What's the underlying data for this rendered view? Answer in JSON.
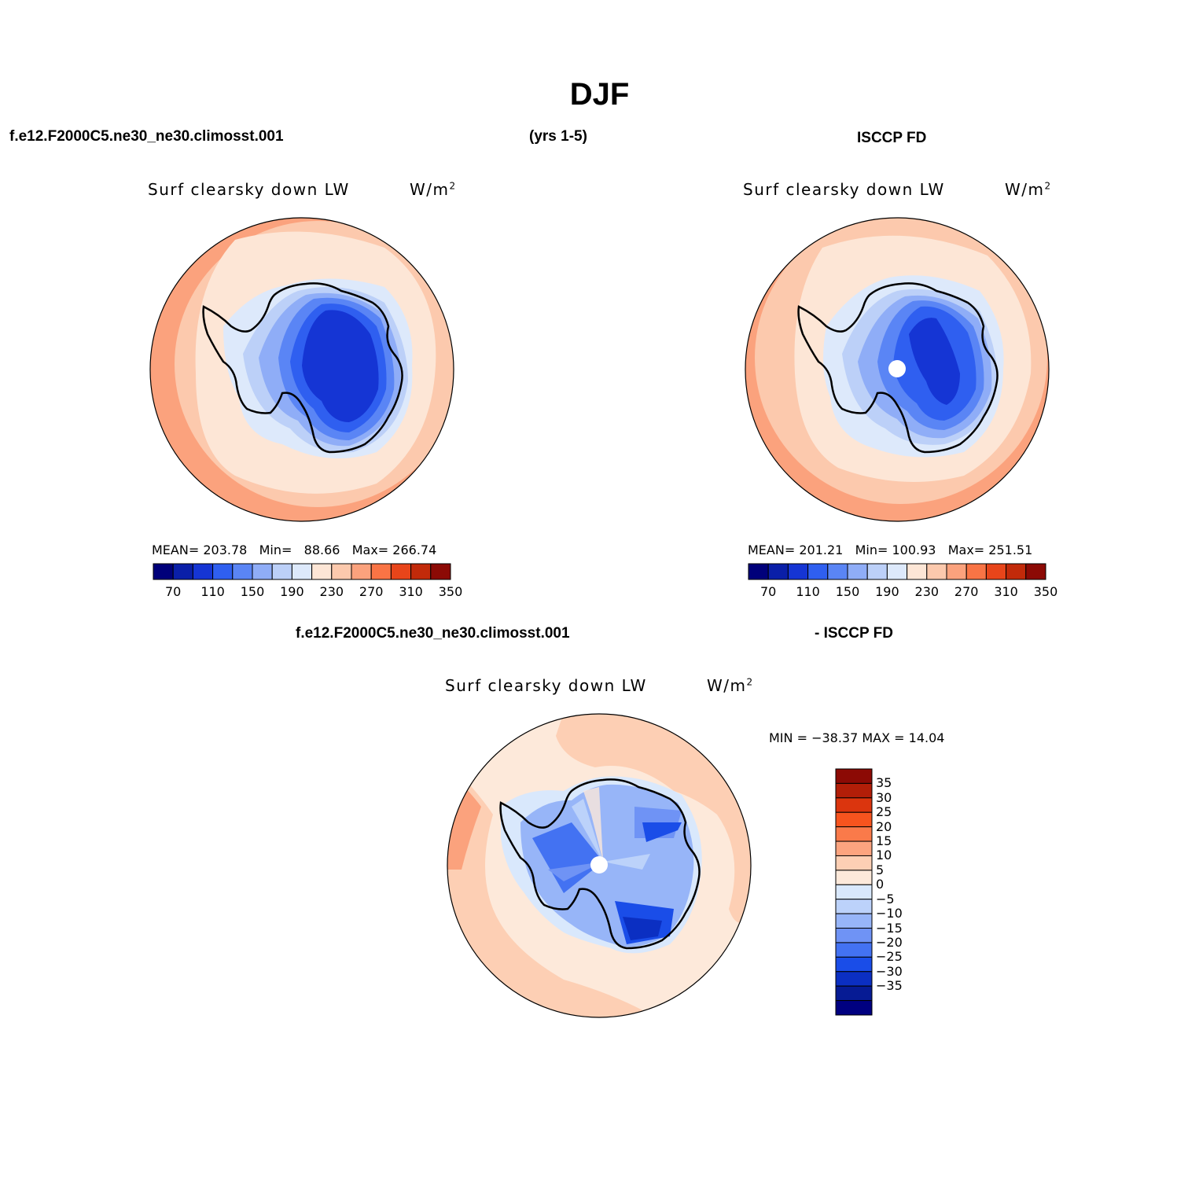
{
  "header": {
    "title": "DJF",
    "case_name": "f.e12.F2000C5.ne30_ne30.climosst.001",
    "years": "(yrs 1-5)",
    "obs_name": "ISCCP FD",
    "diff_case_name": "f.e12.F2000C5.ne30_ne30.climosst.001",
    "diff_obs_name": "- ISCCP FD"
  },
  "panels": [
    {
      "id": "model",
      "variable": "Surf clearsky down LW",
      "units": "W/m",
      "units_sup": "2",
      "stats": {
        "mean_label": "MEAN=",
        "mean": "203.78",
        "min_label": "Min=",
        "min": "88.66",
        "max_label": "Max=",
        "max": "266.74"
      }
    },
    {
      "id": "obs",
      "variable": "Surf clearsky down LW",
      "units": "W/m",
      "units_sup": "2",
      "stats": {
        "mean_label": "MEAN=",
        "mean": "201.21",
        "min_label": "Min=",
        "min": "100.93",
        "max_label": "Max=",
        "max": "251.51"
      }
    },
    {
      "id": "diff",
      "variable": "Surf clearsky down LW",
      "units": "W/m",
      "units_sup": "2",
      "stats_line": "MIN = −38.37 MAX =   14.04"
    }
  ],
  "colorbar_horizontal": {
    "colors": [
      "#00007a",
      "#0a1fa8",
      "#1535d4",
      "#2f5ff0",
      "#5a85f5",
      "#8fadf7",
      "#bcd0f8",
      "#dde9fb",
      "#fde6d6",
      "#fcc9ad",
      "#fba27d",
      "#f97445",
      "#e8451a",
      "#c22a0a",
      "#8c0a05"
    ],
    "tick_labels": [
      "70",
      "110",
      "150",
      "190",
      "230",
      "270",
      "310",
      "350"
    ]
  },
  "colorbar_vertical": {
    "colors": [
      "#8c0a05",
      "#b21e08",
      "#db350e",
      "#f7541e",
      "#fa7a4a",
      "#fca47f",
      "#fdcfb4",
      "#fde9da",
      "#d9e8fc",
      "#bcd2fa",
      "#97b5f8",
      "#6f93f5",
      "#4372f2",
      "#1a4de8",
      "#0b2fc2",
      "#061b94",
      "#000080"
    ],
    "tick_labels": [
      "35",
      "30",
      "25",
      "20",
      "15",
      "10",
      "5",
      "0",
      "−5",
      "−10",
      "−15",
      "−20",
      "−25",
      "−30",
      "−35"
    ]
  },
  "map_fill_colors": {
    "outer_warm": "#fba27d",
    "ring_mid": "#fcc9ad",
    "ring_light": "#fde6d6",
    "ice_edge": "#dde9fb",
    "ice_1": "#bcd0f8",
    "ice_2": "#8fadf7",
    "ice_3": "#5a85f5",
    "ice_4": "#2f5ff0",
    "ice_5": "#1535d4",
    "diff_ring": "#fdcfb4",
    "diff_light": "#fde9da",
    "pole_hole": "#ffffff"
  }
}
